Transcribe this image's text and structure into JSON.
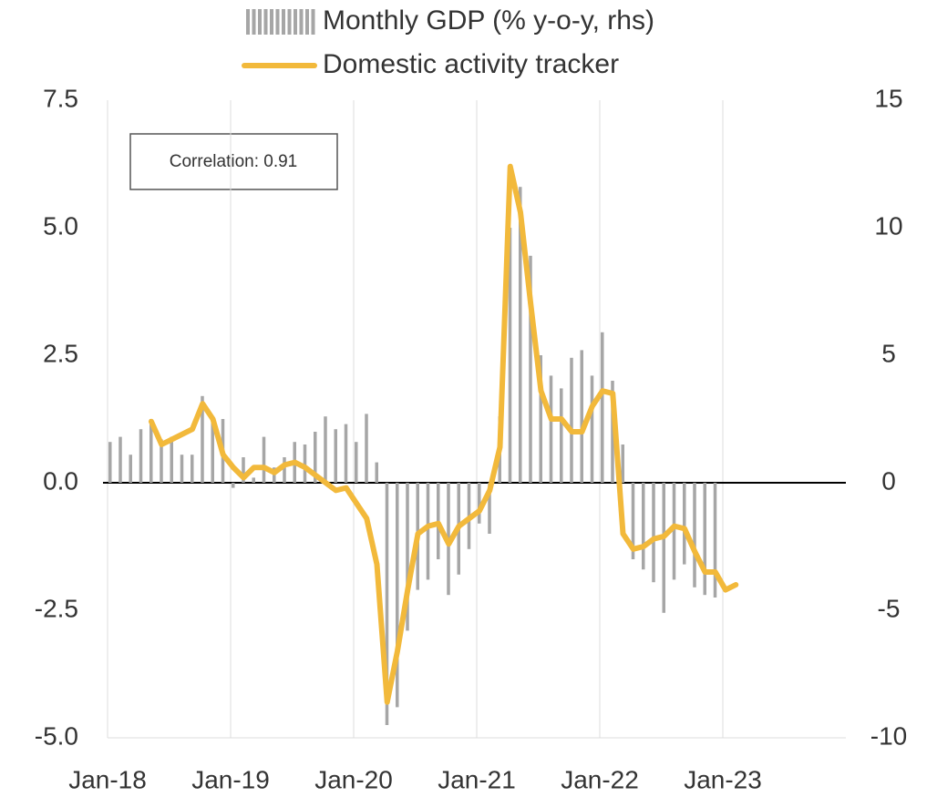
{
  "chart_data": {
    "type": "bar-line",
    "categories": [
      "Jan-18",
      null,
      null,
      null,
      null,
      null,
      null,
      null,
      null,
      null,
      null,
      null,
      "Jan-19",
      null,
      null,
      null,
      null,
      null,
      null,
      null,
      null,
      null,
      null,
      null,
      "Jan-20",
      null,
      null,
      null,
      null,
      null,
      null,
      null,
      null,
      null,
      null,
      null,
      "Jan-21",
      null,
      null,
      null,
      null,
      null,
      null,
      null,
      null,
      null,
      null,
      null,
      "Jan-22",
      null,
      null,
      null,
      null,
      null,
      null,
      null,
      null,
      null,
      null,
      null,
      "Jan-23",
      null,
      null,
      null,
      null,
      null,
      null,
      null,
      null,
      null,
      null,
      null
    ],
    "series": [
      {
        "name": "Monthly GDP (% y-o-y, rhs)",
        "type": "bar",
        "axis": "y2",
        "color": "#a6a6a6",
        "values": [
          1.6,
          1.8,
          1.1,
          2.1,
          2.5,
          1.7,
          1.8,
          1.1,
          1.1,
          3.4,
          2.6,
          2.5,
          -0.2,
          1.0,
          0.2,
          1.8,
          0.6,
          1.0,
          1.6,
          1.5,
          2.0,
          2.6,
          2.1,
          2.3,
          1.6,
          2.7,
          0.8,
          -9.5,
          -8.8,
          -5.8,
          -4.2,
          -3.8,
          -3.0,
          -4.4,
          -3.6,
          -2.6,
          -1.6,
          -2.0,
          2.6,
          10.0,
          11.6,
          8.9,
          5.0,
          4.2,
          3.7,
          4.9,
          5.2,
          4.2,
          5.9,
          4.0,
          1.5,
          -3.0,
          -3.4,
          -3.9,
          -5.1,
          -3.8,
          -3.2,
          -4.1,
          -4.4,
          -4.5,
          null,
          null,
          null,
          null,
          null,
          null,
          null,
          null,
          null,
          null,
          null,
          null
        ]
      },
      {
        "name": "Domestic activity tracker",
        "type": "line",
        "color": "#f2b93b",
        "values": [
          null,
          null,
          null,
          null,
          1.2,
          0.75,
          0.85,
          0.95,
          1.05,
          1.55,
          1.25,
          0.55,
          0.3,
          0.1,
          0.3,
          0.3,
          0.2,
          0.35,
          0.4,
          0.3,
          0.15,
          0.0,
          -0.15,
          -0.1,
          -0.4,
          -0.7,
          -1.6,
          -4.3,
          -3.3,
          -2.1,
          -1.0,
          -0.85,
          -0.8,
          -1.2,
          -0.85,
          -0.7,
          -0.55,
          -0.15,
          0.7,
          6.2,
          5.3,
          3.5,
          1.8,
          1.25,
          1.25,
          1.0,
          1.0,
          1.5,
          1.8,
          1.75,
          -1.0,
          -1.3,
          -1.25,
          -1.1,
          -1.05,
          -0.85,
          -0.9,
          -1.35,
          -1.75,
          -1.75,
          -2.1,
          -2.0,
          null,
          null,
          null,
          null,
          null,
          null,
          null,
          null,
          null,
          null
        ]
      }
    ],
    "ylim": [
      -5,
      7.5
    ],
    "yticks": [
      {
        "value": -5,
        "label": "-5.0"
      },
      -2.5,
      {
        "value": 0,
        "label": "0.0"
      },
      2.5,
      {
        "value": 5,
        "label": "5.0"
      },
      7.5
    ],
    "y2lim": [
      -10,
      15
    ],
    "y2ticks": [
      -10,
      -5,
      0,
      5,
      10,
      15
    ],
    "annotation": "Correlation: 0.91",
    "legend": "top"
  }
}
